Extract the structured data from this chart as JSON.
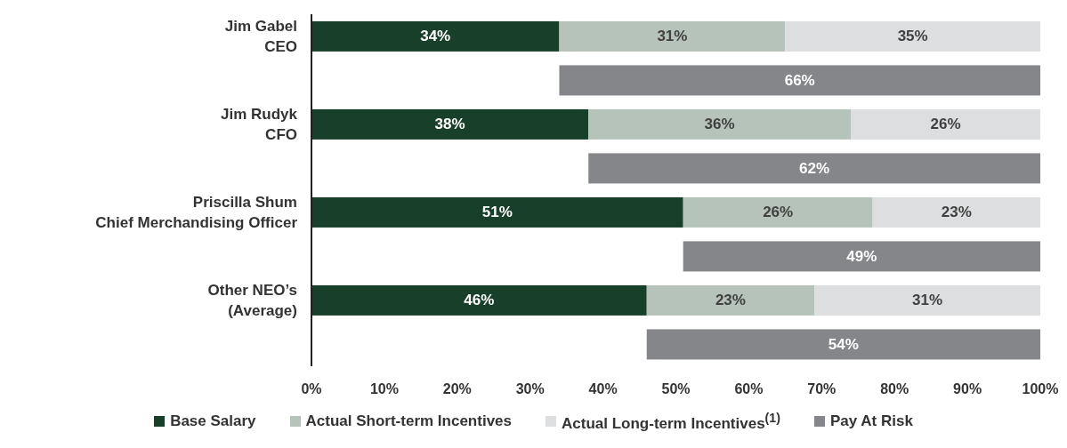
{
  "chart_data": {
    "type": "bar",
    "orientation": "horizontal",
    "stacked": true,
    "categories": [
      "Jim Gabel\nCEO",
      null,
      "Jim Rudyk\nCFO",
      null,
      "Priscilla Shum\nChief Merchandising Officer",
      null,
      "Other NEO’s\n(Average)",
      null
    ],
    "series": [
      {
        "name": "Base Salary",
        "color": "#173f2a",
        "values": [
          34,
          null,
          38,
          null,
          51,
          null,
          46,
          null
        ],
        "value_labels": [
          "34%",
          null,
          "38%",
          null,
          "51%",
          null,
          "46%",
          null
        ]
      },
      {
        "name": "Actual Short-term Incentives",
        "color": "#b6c3ba",
        "values": [
          31,
          null,
          36,
          null,
          26,
          null,
          23,
          null
        ],
        "value_labels": [
          "31%",
          null,
          "36%",
          null,
          "26%",
          null,
          "23%",
          null
        ]
      },
      {
        "name": "Actual Long-term Incentives$^{(1)}$",
        "color": "#dddee0",
        "values": [
          35,
          null,
          26,
          null,
          23,
          null,
          31,
          null
        ],
        "value_labels": [
          "35%",
          null,
          "26%",
          null,
          "23%",
          null,
          "31%",
          null
        ]
      },
      {
        "name": "Pay At Risk",
        "color": "#858689",
        "values": [
          null,
          66,
          null,
          62,
          null,
          49,
          null,
          54
        ],
        "base": [
          null,
          34,
          null,
          38,
          null,
          51,
          null,
          46
        ],
        "value_labels": [
          null,
          "66%",
          null,
          "62%",
          null,
          "49%",
          null,
          "54%"
        ]
      }
    ],
    "xlim": [
      0,
      100
    ],
    "xticks": [
      {
        "value": 0,
        "label": "0%"
      },
      {
        "value": 10,
        "label": "10%"
      },
      {
        "value": 20,
        "label": "20%"
      },
      {
        "value": 30,
        "label": "30%"
      },
      {
        "value": 40,
        "label": "40%"
      },
      {
        "value": 50,
        "label": "50%"
      },
      {
        "value": 60,
        "label": "60%"
      },
      {
        "value": 70,
        "label": "70%"
      },
      {
        "value": 80,
        "label": "80%"
      },
      {
        "value": 90,
        "label": "90%"
      },
      {
        "value": 100,
        "label": "100%"
      }
    ],
    "grid": false,
    "legend": "bottom"
  }
}
